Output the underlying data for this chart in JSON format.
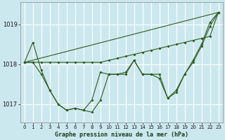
{
  "background_color": "#cce8ef",
  "grid_color": "#ffffff",
  "line_color": "#2d5a1b",
  "marker_color": "#2d5a1b",
  "title": "Graphe pression niveau de la mer (hPa)",
  "xlim": [
    -0.5,
    23.5
  ],
  "ylim": [
    1016.55,
    1019.55
  ],
  "yticks": [
    1017,
    1018,
    1019
  ],
  "xticks": [
    0,
    1,
    2,
    3,
    4,
    5,
    6,
    7,
    8,
    9,
    10,
    11,
    12,
    13,
    14,
    15,
    16,
    17,
    18,
    19,
    20,
    21,
    22,
    23
  ],
  "series": {
    "line_wavy": {
      "x": [
        0,
        1,
        2,
        3,
        4,
        5,
        6,
        7,
        8,
        9,
        10,
        11,
        12,
        13,
        14,
        15,
        16,
        17,
        18,
        19,
        20,
        21,
        22,
        23
      ],
      "y": [
        1018.05,
        1018.55,
        1017.85,
        1017.35,
        1017.0,
        1016.85,
        1016.9,
        1016.85,
        1016.8,
        1017.1,
        1017.75,
        1017.75,
        1017.75,
        1018.1,
        1017.75,
        1017.75,
        1017.75,
        1017.15,
        1017.35,
        1017.75,
        1018.1,
        1018.5,
        1019.05,
        1019.3
      ]
    },
    "line_straight": {
      "x": [
        0,
        23
      ],
      "y": [
        1018.05,
        1019.3
      ]
    },
    "line_flat_then_up": {
      "x": [
        0,
        1,
        2,
        3,
        4,
        5,
        6,
        7,
        8,
        9,
        10,
        11,
        12,
        13,
        14,
        15,
        16,
        17,
        18,
        19,
        20,
        21,
        22,
        23
      ],
      "y": [
        1018.05,
        1018.05,
        1018.05,
        1018.05,
        1018.05,
        1018.05,
        1018.05,
        1018.05,
        1018.05,
        1018.05,
        1018.1,
        1018.15,
        1018.2,
        1018.25,
        1018.3,
        1018.35,
        1018.4,
        1018.45,
        1018.5,
        1018.55,
        1018.6,
        1018.65,
        1018.7,
        1019.3
      ]
    },
    "line_dip": {
      "x": [
        0,
        1,
        2,
        3,
        4,
        5,
        6,
        7,
        8,
        9,
        10,
        11,
        12,
        13,
        14,
        15,
        16,
        17,
        18,
        19,
        20,
        21,
        22,
        23
      ],
      "y": [
        1018.05,
        1018.05,
        1017.75,
        1017.35,
        1017.0,
        1016.85,
        1016.9,
        1016.85,
        1017.1,
        1017.8,
        1017.75,
        1017.75,
        1017.8,
        1018.1,
        1017.75,
        1017.75,
        1017.65,
        1017.15,
        1017.3,
        1017.75,
        1018.05,
        1018.45,
        1018.95,
        1019.3
      ]
    }
  }
}
